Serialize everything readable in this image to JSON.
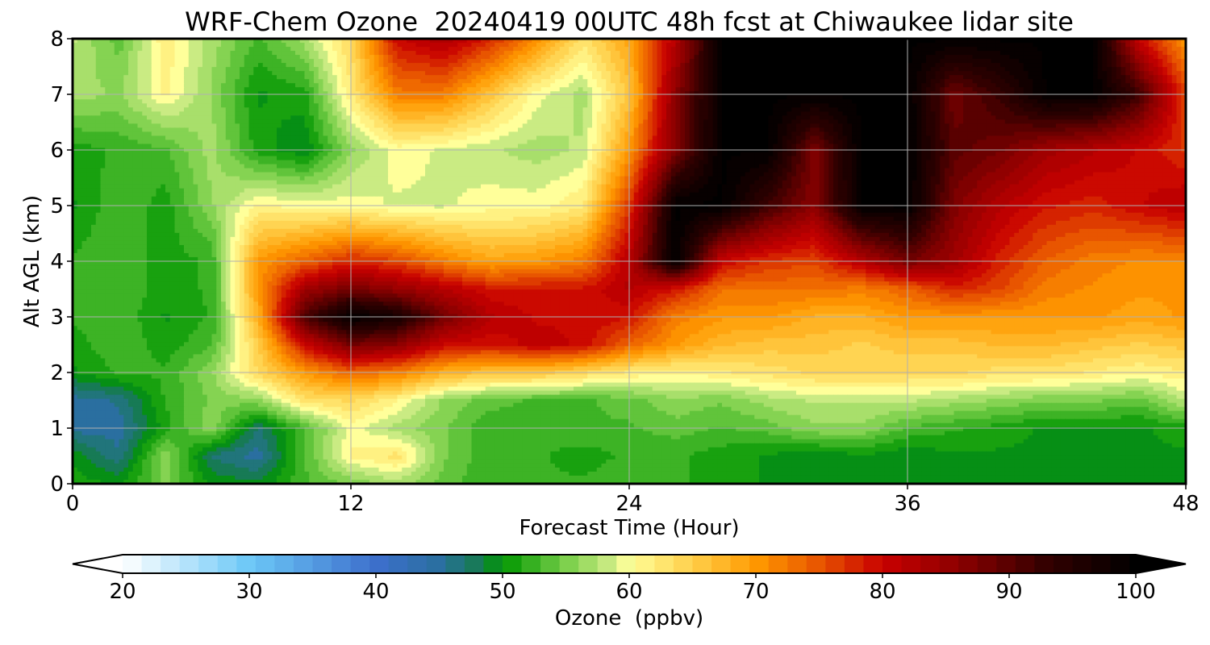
{
  "chart_data": {
    "type": "heatmap",
    "title": "WRF-Chem Ozone  20240419 00UTC 48h fcst at Chiwaukee lidar site",
    "xlabel": "Forecast Time (Hour)",
    "ylabel": "Alt AGL (km)",
    "xlim": [
      0,
      48
    ],
    "ylim": [
      0,
      8
    ],
    "xticks": [
      0,
      12,
      24,
      36,
      48
    ],
    "yticks": [
      0,
      1,
      2,
      3,
      4,
      5,
      6,
      7,
      8
    ],
    "grid": true,
    "colorbar": {
      "label": "Ozone  (ppbv)",
      "range": [
        20,
        100
      ],
      "ticks": [
        20,
        30,
        40,
        50,
        60,
        70,
        80,
        90,
        100
      ],
      "extend": "both",
      "colors": [
        {
          "v": 20,
          "c": "#ffffff"
        },
        {
          "v": 30,
          "c": "#6cc8f7"
        },
        {
          "v": 40,
          "c": "#3d6fcc"
        },
        {
          "v": 45,
          "c": "#2a6fa0"
        },
        {
          "v": 48,
          "c": "#177a55"
        },
        {
          "v": 50,
          "c": "#009600"
        },
        {
          "v": 55,
          "c": "#79cf4a"
        },
        {
          "v": 59,
          "c": "#d6ef8b"
        },
        {
          "v": 60,
          "c": "#ffff9a"
        },
        {
          "v": 65,
          "c": "#ffcf4a"
        },
        {
          "v": 70,
          "c": "#ff9900"
        },
        {
          "v": 75,
          "c": "#e85500"
        },
        {
          "v": 80,
          "c": "#c80000"
        },
        {
          "v": 86,
          "c": "#8c0000"
        },
        {
          "v": 93,
          "c": "#320000"
        },
        {
          "v": 100,
          "c": "#000000"
        }
      ]
    },
    "heights": [
      0,
      0.5,
      1,
      1.5,
      2,
      2.5,
      3,
      3.5,
      4,
      5,
      6,
      7,
      8
    ],
    "times": [
      0,
      2,
      4,
      6,
      8,
      10,
      12,
      14,
      16,
      18,
      20,
      22,
      24,
      26,
      28,
      30,
      32,
      34,
      36,
      38,
      40,
      42,
      44,
      46,
      48
    ],
    "values": [
      [
        51,
        50,
        55,
        50,
        49,
        53,
        55,
        57,
        54,
        52,
        52,
        52,
        53,
        52,
        51,
        50,
        49,
        50,
        49,
        50,
        50,
        50,
        50,
        50,
        50
      ],
      [
        50,
        46,
        56,
        47,
        45,
        53,
        61,
        63,
        55,
        52,
        52,
        51,
        52,
        52,
        51,
        50,
        49,
        50,
        49,
        50,
        50,
        50,
        50,
        50,
        50
      ],
      [
        45,
        45,
        51,
        56,
        47,
        53,
        60,
        57,
        55,
        52,
        52,
        53,
        53,
        54,
        53,
        54,
        56,
        56,
        53,
        52,
        51,
        50,
        50,
        50,
        51
      ],
      [
        45,
        46,
        52,
        55,
        56,
        63,
        64,
        61,
        56,
        54,
        53,
        53,
        54,
        56,
        55,
        57,
        58,
        58,
        58,
        57,
        56,
        55,
        55,
        54,
        58
      ],
      [
        50,
        52,
        52,
        56,
        64,
        70,
        74,
        72,
        68,
        66,
        66,
        64,
        62,
        61,
        62,
        63,
        64,
        64,
        64,
        64,
        63,
        63,
        62,
        61,
        62
      ],
      [
        51,
        53,
        51,
        53,
        65,
        80,
        88,
        86,
        80,
        79,
        81,
        80,
        74,
        70,
        67,
        66,
        66,
        65,
        66,
        66,
        67,
        67,
        66,
        65,
        66
      ],
      [
        52,
        53,
        50,
        52,
        68,
        91,
        100,
        97,
        88,
        82,
        80,
        80,
        79,
        72,
        70,
        70,
        68,
        68,
        70,
        70,
        70,
        70,
        70,
        69,
        70
      ],
      [
        52,
        53,
        51,
        52,
        70,
        84,
        88,
        85,
        82,
        79,
        79,
        79,
        82,
        79,
        73,
        73,
        73,
        72,
        74,
        78,
        76,
        72,
        71,
        70,
        70
      ],
      [
        52,
        53,
        51,
        52,
        70,
        74,
        78,
        76,
        72,
        69,
        70,
        72,
        82,
        100,
        80,
        77,
        76,
        82,
        88,
        84,
        78,
        74,
        72,
        71,
        71
      ],
      [
        50,
        53,
        51,
        56,
        61,
        60,
        60,
        59,
        59,
        60,
        60,
        62,
        77,
        100,
        100,
        92,
        86,
        100,
        100,
        87,
        82,
        79,
        78,
        80,
        82
      ],
      [
        51,
        52,
        53,
        57,
        51,
        49,
        56,
        60,
        59,
        58,
        57,
        58,
        70,
        87,
        100,
        100,
        87,
        100,
        100,
        90,
        88,
        84,
        82,
        80,
        77
      ],
      [
        57,
        56,
        61,
        56,
        50,
        51,
        62,
        72,
        72,
        66,
        60,
        57,
        66,
        86,
        100,
        100,
        100,
        100,
        100,
        88,
        93,
        100,
        100,
        92,
        76
      ],
      [
        58,
        54,
        62,
        57,
        53,
        57,
        64,
        80,
        83,
        78,
        71,
        63,
        69,
        82,
        100,
        100,
        100,
        100,
        100,
        100,
        100,
        100,
        100,
        80,
        70
      ]
    ]
  }
}
